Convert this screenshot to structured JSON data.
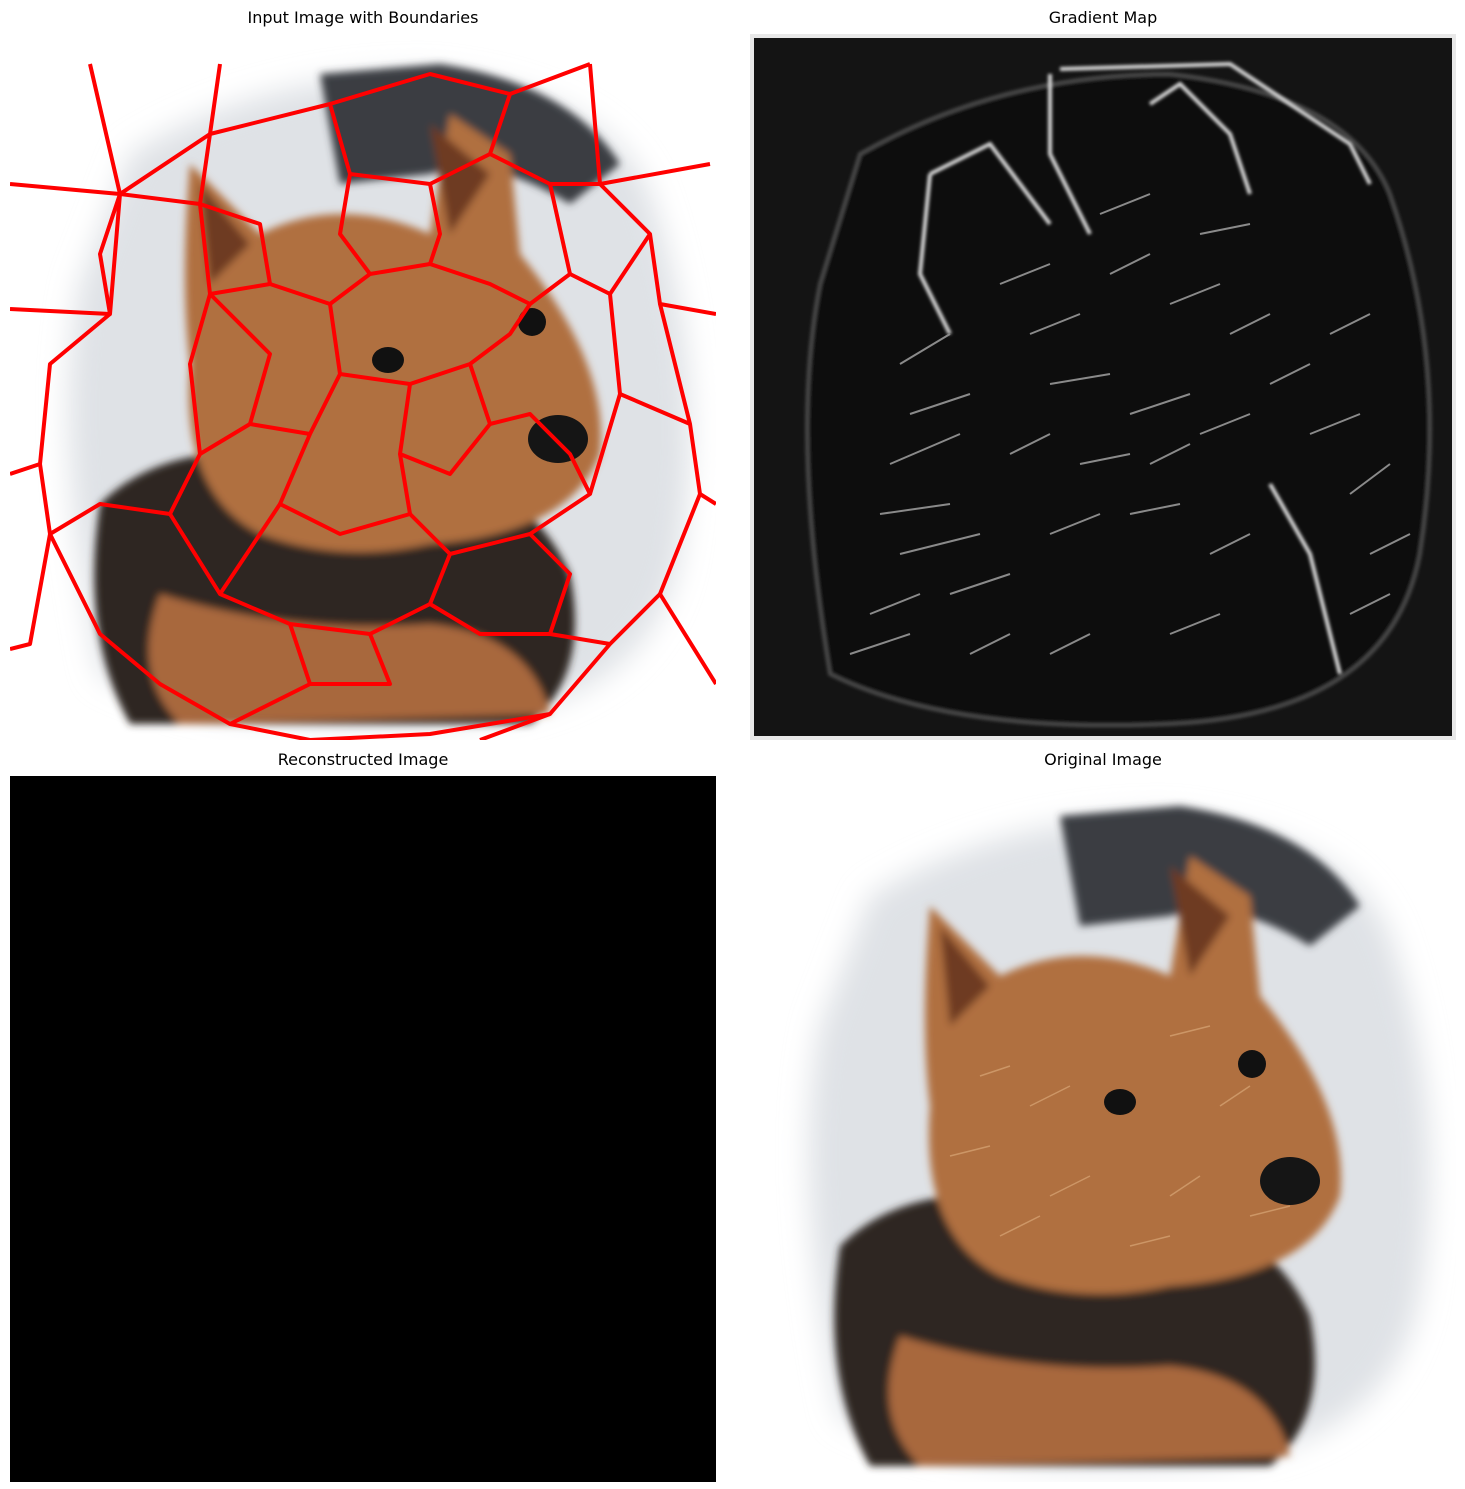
{
  "figure": {
    "panels": [
      {
        "title": "Input Image with Boundaries",
        "content": "dog-photo-with-superpixel-boundaries"
      },
      {
        "title": "Gradient Map",
        "content": "edge-gradient-map"
      },
      {
        "title": "Reconstructed Image",
        "content": "black-image"
      },
      {
        "title": "Original Image",
        "content": "dog-photo"
      }
    ]
  },
  "colors": {
    "boundary": "#ff0000",
    "background": "#ffffff",
    "gradient_bg": "#141414",
    "reconstructed": "#000000",
    "fur": "#b07040",
    "dark_fur": "#2a2420",
    "pavement": "#dfe2e6"
  }
}
